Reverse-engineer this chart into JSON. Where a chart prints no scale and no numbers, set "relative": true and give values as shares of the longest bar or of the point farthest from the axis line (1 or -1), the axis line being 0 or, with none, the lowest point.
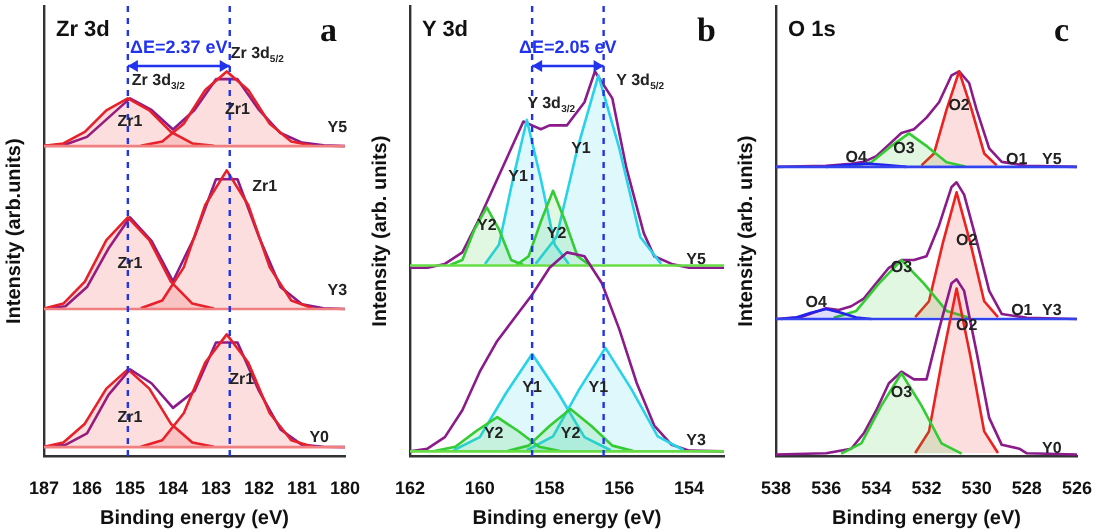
{
  "chart_data": [
    {
      "type": "line",
      "title": "Zr 3d",
      "xlabel": "Binding energy (eV)",
      "ylabel": "Intensity (arb.units)",
      "relative": true,
      "xlim": [
        187,
        180
      ],
      "xticks": [
        187,
        186,
        185,
        184,
        183,
        182,
        181,
        180
      ],
      "grid": false,
      "legend": false,
      "ref_lines": [
        {
          "axis": "x",
          "value": 185.05,
          "color": "#2233ee",
          "line_style": "dashed"
        },
        {
          "axis": "x",
          "value": 182.68,
          "color": "#2233ee",
          "line_style": "dashed"
        }
      ],
      "annotations": [
        "a",
        "ΔE=2.37 eV",
        {
          "text": "Zr 3d$_{3/2}$",
          "x": 185.05,
          "y": 0.93
        },
        {
          "text": "Zr 3d$_{5/2}$",
          "x": 182.75,
          "y": 1.0
        },
        {
          "text": "Zr1",
          "x": 185.0,
          "y": 0.87
        },
        {
          "text": "Zr1",
          "x": 182.5,
          "y": 0.9
        },
        {
          "text": "Y5",
          "x": 180.5,
          "y": 0.808
        },
        {
          "text": "Zr1",
          "x": 185.0,
          "y": 0.5
        },
        {
          "text": "Zr1",
          "x": 182.25,
          "y": 0.653
        },
        {
          "text": "Y3",
          "x": 180.5,
          "y": 0.385
        },
        {
          "text": "Zr1",
          "x": 185.0,
          "y": 0.1
        },
        {
          "text": "Zr1",
          "x": 182.4,
          "y": 0.2
        },
        {
          "text": "Y0",
          "x": 180.6,
          "y": 0.05
        }
      ],
      "series": [
        {
          "type": "line",
          "color": "#f08080",
          "x": [
            187,
            180
          ],
          "values": [
            0.024,
            0.024
          ]
        },
        {
          "type": "area",
          "color": "#e8202a",
          "x": [
            187,
            186.55,
            186.05,
            185.55,
            185.05,
            184.55,
            184.05,
            183.55,
            183.05
          ],
          "values": [
            0.025,
            0.036,
            0.085,
            0.176,
            0.226,
            0.176,
            0.085,
            0.036,
            0.025
          ]
        },
        {
          "type": "area",
          "color": "#e8202a",
          "x": [
            184.75,
            184.25,
            183.75,
            183.25,
            182.75,
            182.25,
            181.75,
            181.25,
            180.75
          ],
          "values": [
            0.025,
            0.042,
            0.112,
            0.244,
            0.317,
            0.244,
            0.112,
            0.042,
            0.025
          ]
        },
        {
          "type": "line",
          "color": "#8b1a8b",
          "x": [
            187,
            186.5,
            186,
            185.5,
            185,
            184.5,
            184,
            183.5,
            183,
            182.5,
            182,
            181.5,
            181,
            180.5,
            180
          ],
          "values": [
            0.025,
            0.03,
            0.06,
            0.16,
            0.226,
            0.19,
            0.126,
            0.17,
            0.296,
            0.296,
            0.17,
            0.07,
            0.03,
            0.025,
            0.024
          ]
        },
        {
          "type": "line",
          "color": "#f08080",
          "x": [
            187,
            180
          ],
          "values": [
            0.383,
            0.383
          ]
        },
        {
          "type": "area",
          "color": "#e8202a",
          "x": [
            187,
            186.55,
            186.05,
            185.55,
            185.05,
            184.55,
            184.05,
            183.55,
            183.05
          ],
          "values": [
            0.384,
            0.397,
            0.454,
            0.562,
            0.621,
            0.562,
            0.454,
            0.397,
            0.384
          ]
        },
        {
          "type": "area",
          "color": "#e8202a",
          "x": [
            184.75,
            184.25,
            183.75,
            183.25,
            182.75,
            182.25,
            181.75,
            181.25,
            180.75
          ],
          "values": [
            0.385,
            0.405,
            0.491,
            0.653,
            0.743,
            0.653,
            0.491,
            0.405,
            0.385
          ]
        },
        {
          "type": "line",
          "color": "#8b1a8b",
          "x": [
            187,
            186.5,
            186,
            185.5,
            185,
            184.5,
            184,
            183.5,
            183,
            182.5,
            182,
            181.5,
            181,
            180.5,
            180
          ],
          "values": [
            0.384,
            0.39,
            0.44,
            0.54,
            0.621,
            0.56,
            0.455,
            0.57,
            0.72,
            0.72,
            0.57,
            0.44,
            0.395,
            0.385,
            0.383
          ]
        },
        {
          "type": "line",
          "color": "#f08080",
          "x": [
            187,
            180
          ],
          "values": [
            0.806,
            0.806
          ]
        },
        {
          "type": "area",
          "color": "#e8202a",
          "x": [
            187,
            186.55,
            186.05,
            185.55,
            185.05,
            184.55,
            184.05,
            183.55,
            183.05
          ],
          "values": [
            0.807,
            0.813,
            0.843,
            0.899,
            0.93,
            0.899,
            0.843,
            0.813,
            0.807
          ]
        },
        {
          "type": "area",
          "color": "#e8202a",
          "x": [
            184.75,
            184.25,
            183.75,
            183.25,
            182.75,
            182.25,
            181.75,
            181.25,
            180.75
          ],
          "values": [
            0.807,
            0.818,
            0.864,
            0.952,
            1.0,
            0.952,
            0.864,
            0.818,
            0.807
          ]
        },
        {
          "type": "line",
          "color": "#8b1a8b",
          "x": [
            187,
            186.5,
            186,
            185.5,
            185,
            184.5,
            184,
            183.5,
            183,
            182.5,
            182,
            181.5,
            181,
            180.5,
            180
          ],
          "values": [
            0.807,
            0.81,
            0.83,
            0.88,
            0.93,
            0.9,
            0.849,
            0.9,
            0.98,
            0.98,
            0.9,
            0.84,
            0.815,
            0.808,
            0.806
          ]
        }
      ]
    },
    {
      "type": "line",
      "title": "Y 3d",
      "xlabel": "Binding energy (eV)",
      "ylabel": "Intensity (arb. units)",
      "relative": true,
      "xlim": [
        162,
        153
      ],
      "xticks": [
        162,
        160,
        158,
        156,
        154
      ],
      "grid": false,
      "legend": false,
      "ref_lines": [
        {
          "axis": "x",
          "value": 158.5,
          "color": "#2233ee",
          "line_style": "dashed"
        },
        {
          "axis": "x",
          "value": 156.45,
          "color": "#2233ee",
          "line_style": "dashed"
        }
      ],
      "annotations": [
        "b",
        "ΔE=2.05 eV",
        {
          "text": "Y 3d$_{3/2}$",
          "x": 158.75,
          "y": 0.87
        },
        {
          "text": "Y 3d$_{5/2}$",
          "x": 156.2,
          "y": 0.93
        },
        {
          "text": "Y1",
          "x": 158.9,
          "y": 0.726
        },
        {
          "text": "Y1",
          "x": 157.1,
          "y": 0.8
        },
        {
          "text": "Y2",
          "x": 159.8,
          "y": 0.6
        },
        {
          "text": "Y2",
          "x": 157.8,
          "y": 0.58
        },
        {
          "text": "Y5",
          "x": 153.8,
          "y": 0.51
        },
        {
          "text": "Y1",
          "x": 158.5,
          "y": 0.18
        },
        {
          "text": "Y1",
          "x": 156.6,
          "y": 0.18
        },
        {
          "text": "Y2",
          "x": 159.6,
          "y": 0.06
        },
        {
          "text": "Y2",
          "x": 157.4,
          "y": 0.06
        },
        {
          "text": "Y3",
          "x": 153.8,
          "y": 0.04
        }
      ],
      "series": [
        {
          "type": "line",
          "color": "#66dd44",
          "x": [
            162,
            153
          ],
          "values": [
            0.013,
            0.013
          ]
        },
        {
          "type": "area",
          "color": "#33cc33",
          "x": [
            161.3,
            160.7,
            160.1,
            159.5,
            158.9,
            158.3,
            157.7
          ],
          "values": [
            0.014,
            0.025,
            0.066,
            0.102,
            0.066,
            0.025,
            0.014
          ]
        },
        {
          "type": "area",
          "color": "#33cc33",
          "x": [
            159.2,
            158.6,
            158,
            157.4,
            156.8,
            156.2,
            155.6
          ],
          "values": [
            0.014,
            0.028,
            0.079,
            0.123,
            0.079,
            0.028,
            0.014
          ]
        },
        {
          "type": "area",
          "color": "#27d3e8",
          "x": [
            160.75,
            160,
            159.25,
            158.5,
            157.75,
            157,
            156.25
          ],
          "values": [
            0.016,
            0.05,
            0.164,
            0.266,
            0.164,
            0.05,
            0.016
          ]
        },
        {
          "type": "area",
          "color": "#27d3e8",
          "x": [
            158.65,
            157.9,
            157.15,
            156.4,
            155.65,
            154.9,
            154.15
          ],
          "values": [
            0.016,
            0.052,
            0.174,
            0.282,
            0.174,
            0.052,
            0.016
          ]
        },
        {
          "type": "line",
          "color": "#8b1a8b",
          "x": [
            162,
            161.5,
            161,
            160.5,
            160,
            159.5,
            159,
            158.5,
            158,
            157.5,
            157,
            156.5,
            156,
            155.5,
            155,
            154.5,
            154,
            153
          ],
          "values": [
            0.013,
            0.02,
            0.05,
            0.12,
            0.22,
            0.3,
            0.36,
            0.42,
            0.49,
            0.53,
            0.52,
            0.45,
            0.33,
            0.19,
            0.08,
            0.03,
            0.015,
            0.013
          ]
        },
        {
          "type": "line",
          "color": "#66dd44",
          "x": [
            162,
            153
          ],
          "values": [
            0.496,
            0.496
          ]
        },
        {
          "type": "area",
          "color": "#33cc33",
          "x": [
            160.85,
            160.5,
            160.15,
            159.8,
            159.45,
            159.1,
            158.75
          ],
          "values": [
            0.497,
            0.51,
            0.59,
            0.647,
            0.59,
            0.51,
            0.497
          ]
        },
        {
          "type": "area",
          "color": "#33cc33",
          "x": [
            158.95,
            158.6,
            158.25,
            157.9,
            157.55,
            157.2,
            156.85
          ],
          "values": [
            0.497,
            0.52,
            0.61,
            0.69,
            0.61,
            0.52,
            0.497
          ]
        },
        {
          "type": "area",
          "color": "#27d3e8",
          "x": [
            159.85,
            159.45,
            159.05,
            158.65,
            158.25,
            157.85,
            157.45
          ],
          "values": [
            0.5,
            0.55,
            0.72,
            0.874,
            0.72,
            0.55,
            0.5
          ]
        },
        {
          "type": "area",
          "color": "#27d3e8",
          "x": [
            158.4,
            157.8,
            157.2,
            156.6,
            156,
            155.4,
            154.8
          ],
          "values": [
            0.5,
            0.57,
            0.8,
            0.99,
            0.8,
            0.57,
            0.5
          ]
        },
        {
          "type": "line",
          "color": "#8b1a8b",
          "x": [
            162,
            161.5,
            161,
            160.5,
            160,
            159.5,
            159,
            158.75,
            158.5,
            158.25,
            158,
            157.5,
            157,
            156.7,
            156.2,
            155.8,
            155.3,
            155,
            154.5,
            154,
            153
          ],
          "values": [
            0.49,
            0.49,
            0.5,
            0.53,
            0.62,
            0.72,
            0.82,
            0.87,
            0.86,
            0.85,
            0.86,
            0.86,
            0.92,
            1.0,
            0.93,
            0.75,
            0.58,
            0.52,
            0.5,
            0.49,
            0.49
          ]
        }
      ]
    },
    {
      "type": "line",
      "title": "O 1s",
      "xlabel": "Binding energy (eV)",
      "ylabel": "Intensity (arb. units)",
      "relative": true,
      "xlim": [
        538,
        526
      ],
      "xticks": [
        538,
        536,
        534,
        532,
        530,
        528,
        526
      ],
      "grid": false,
      "legend": false,
      "annotations": [
        "c",
        {
          "text": "O4",
          "x": 534.8,
          "y": 0.775
        },
        {
          "text": "O3",
          "x": 532.9,
          "y": 0.8
        },
        {
          "text": "O2",
          "x": 530.7,
          "y": 0.91
        },
        {
          "text": "O1",
          "x": 528.4,
          "y": 0.77
        },
        {
          "text": "Y5",
          "x": 527.0,
          "y": 0.77
        },
        {
          "text": "O4",
          "x": 536.4,
          "y": 0.4
        },
        {
          "text": "O3",
          "x": 533.0,
          "y": 0.49
        },
        {
          "text": "O2",
          "x": 530.4,
          "y": 0.56
        },
        {
          "text": "O1",
          "x": 528.2,
          "y": 0.38
        },
        {
          "text": "Y3",
          "x": 527.0,
          "y": 0.38
        },
        {
          "text": "O3",
          "x": 533.0,
          "y": 0.165
        },
        {
          "text": "O2",
          "x": 530.4,
          "y": 0.34
        },
        {
          "text": "Y0",
          "x": 527.0,
          "y": 0.02
        }
      ],
      "series": [
        {
          "type": "area",
          "color": "#33cc33",
          "x": [
            535.4,
            534.6,
            533.8,
            533,
            532.2,
            531.4,
            530.6
          ],
          "values": [
            0.007,
            0.034,
            0.132,
            0.216,
            0.132,
            0.034,
            0.007
          ]
        },
        {
          "type": "area",
          "color": "#ee2020",
          "x": [
            532.45,
            531.9,
            531.35,
            530.8,
            530.25,
            529.7,
            529.15
          ],
          "values": [
            0.009,
            0.065,
            0.26,
            0.436,
            0.26,
            0.065,
            0.009
          ]
        },
        {
          "type": "line",
          "color": "#8b1a8b",
          "x": [
            538,
            536,
            535,
            534.5,
            534,
            533.5,
            533,
            532.5,
            532,
            531.5,
            531,
            530.8,
            530.5,
            530,
            529.5,
            529,
            528.3,
            528,
            526
          ],
          "values": [
            0.005,
            0.008,
            0.02,
            0.06,
            0.12,
            0.19,
            0.22,
            0.2,
            0.2,
            0.33,
            0.45,
            0.46,
            0.43,
            0.27,
            0.1,
            0.03,
            0.02,
            0.008,
            0.005
          ]
        },
        {
          "type": "line",
          "color": "#3344ee",
          "x": [
            538,
            526
          ],
          "values": [
            0.357,
            0.357
          ]
        },
        {
          "type": "area",
          "color": "#2222ee",
          "x": [
            537.8,
            537.2,
            536.6,
            536,
            535.4,
            534.8,
            534.2
          ],
          "values": [
            0.357,
            0.361,
            0.373,
            0.383,
            0.373,
            0.361,
            0.357
          ]
        },
        {
          "type": "area",
          "color": "#33cc33",
          "x": [
            535.7,
            534.8,
            533.9,
            533,
            532.1,
            531.2,
            530.3
          ],
          "values": [
            0.36,
            0.378,
            0.449,
            0.51,
            0.449,
            0.378,
            0.36
          ]
        },
        {
          "type": "area",
          "color": "#ee2020",
          "x": [
            532.45,
            531.9,
            531.35,
            530.8,
            530.25,
            529.7,
            529.15
          ],
          "values": [
            0.362,
            0.403,
            0.554,
            0.686,
            0.554,
            0.403,
            0.362
          ]
        },
        {
          "type": "line",
          "color": "#8b1a8b",
          "x": [
            538,
            537,
            536,
            535.5,
            535,
            534.5,
            534,
            533.5,
            533,
            532.5,
            532,
            531.5,
            531,
            530.8,
            530.5,
            530,
            529.5,
            529,
            528,
            526
          ],
          "values": [
            0.357,
            0.362,
            0.385,
            0.38,
            0.39,
            0.41,
            0.45,
            0.49,
            0.51,
            0.51,
            0.52,
            0.6,
            0.7,
            0.712,
            0.68,
            0.56,
            0.43,
            0.37,
            0.36,
            0.357
          ]
        },
        {
          "type": "line",
          "color": "#3344ee",
          "x": [
            538,
            526
          ],
          "values": [
            0.752,
            0.752
          ]
        },
        {
          "type": "area",
          "color": "#2222ee",
          "x": [
            536,
            535.2,
            534.4,
            533.6,
            532.8
          ],
          "values": [
            0.752,
            0.757,
            0.761,
            0.757,
            0.752
          ]
        },
        {
          "type": "area",
          "color": "#33cc33",
          "x": [
            534.95,
            534.2,
            533.45,
            532.7,
            531.95,
            531.2,
            530.45
          ],
          "values": [
            0.753,
            0.764,
            0.804,
            0.839,
            0.804,
            0.764,
            0.753
          ]
        },
        {
          "type": "area",
          "color": "#ee2020",
          "x": [
            532.2,
            531.7,
            531.2,
            530.7,
            530.2,
            529.7,
            529.2
          ],
          "values": [
            0.756,
            0.787,
            0.901,
            1.0,
            0.901,
            0.787,
            0.756
          ]
        },
        {
          "type": "line",
          "color": "#8b1a8b",
          "x": [
            538,
            536,
            535,
            534.5,
            534,
            533.5,
            533,
            532.5,
            532,
            531.5,
            531,
            530.7,
            530.3,
            530,
            529.5,
            529,
            528,
            526
          ],
          "values": [
            0.752,
            0.755,
            0.76,
            0.765,
            0.78,
            0.81,
            0.84,
            0.85,
            0.88,
            0.92,
            0.99,
            1.0,
            0.97,
            0.9,
            0.8,
            0.765,
            0.755,
            0.752
          ]
        }
      ]
    }
  ]
}
